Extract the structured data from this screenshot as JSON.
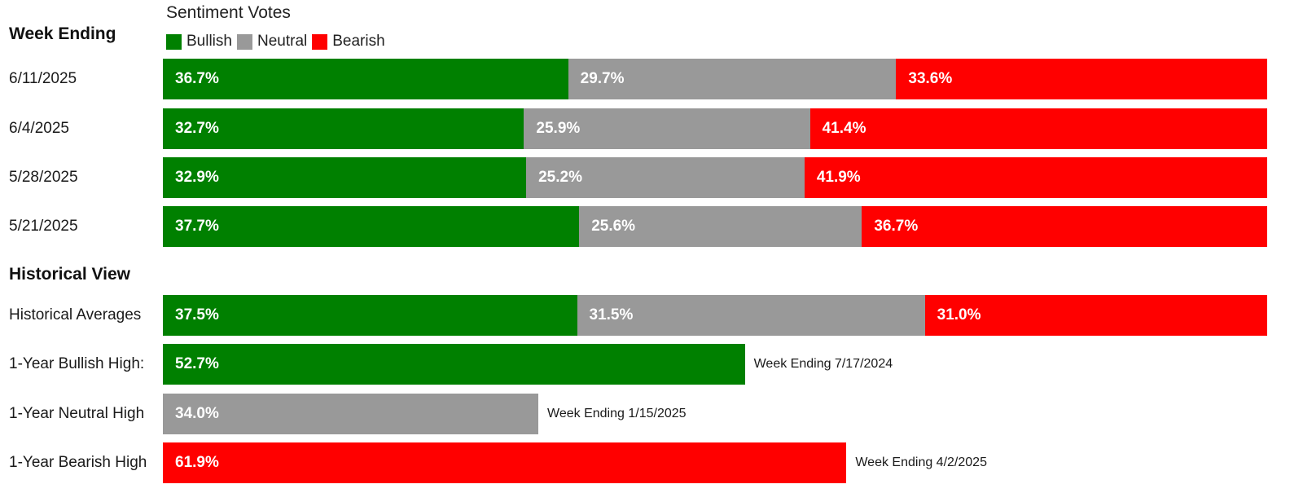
{
  "colors": {
    "bullish": "#008000",
    "neutral": "#999999",
    "bearish": "#ff0000",
    "bar_text": "#ffffff"
  },
  "chart_data": {
    "type": "bar",
    "orientation": "horizontal",
    "stacked": true,
    "title": "Sentiment Votes",
    "legend_position": "top-left",
    "legend": [
      "Bullish",
      "Neutral",
      "Bearish"
    ],
    "xlim": [
      0,
      100
    ],
    "grid": false,
    "sections": [
      {
        "header": "Week Ending",
        "rows": [
          {
            "label": "6/11/2025",
            "bullish": 36.7,
            "neutral": 29.7,
            "bearish": 33.6,
            "texts": [
              "36.7%",
              "29.7%",
              "33.6%"
            ]
          },
          {
            "label": "6/4/2025",
            "bullish": 32.7,
            "neutral": 25.9,
            "bearish": 41.4,
            "texts": [
              "32.7%",
              "25.9%",
              "41.4%"
            ]
          },
          {
            "label": "5/28/2025",
            "bullish": 32.9,
            "neutral": 25.2,
            "bearish": 41.9,
            "texts": [
              "32.9%",
              "25.2%",
              "41.9%"
            ]
          },
          {
            "label": "5/21/2025",
            "bullish": 37.7,
            "neutral": 25.6,
            "bearish": 36.7,
            "texts": [
              "37.7%",
              "25.6%",
              "36.7%"
            ]
          }
        ]
      },
      {
        "header": "Historical View",
        "rows": [
          {
            "label": "Historical Averages",
            "bullish": 37.5,
            "neutral": 31.5,
            "bearish": 31.0,
            "texts": [
              "37.5%",
              "31.5%",
              "31.0%"
            ]
          },
          {
            "label": "1-Year Bullish High:",
            "bullish": 52.7,
            "texts": [
              "52.7%"
            ],
            "note": "Week Ending 7/17/2024"
          },
          {
            "label": "1-Year Neutral High",
            "neutral": 34.0,
            "texts": [
              "34.0%"
            ],
            "note": "Week Ending 1/15/2025"
          },
          {
            "label": "1-Year Bearish High",
            "bearish": 61.9,
            "texts": [
              "61.9%"
            ],
            "note": "Week Ending 4/2/2025"
          }
        ]
      }
    ]
  }
}
